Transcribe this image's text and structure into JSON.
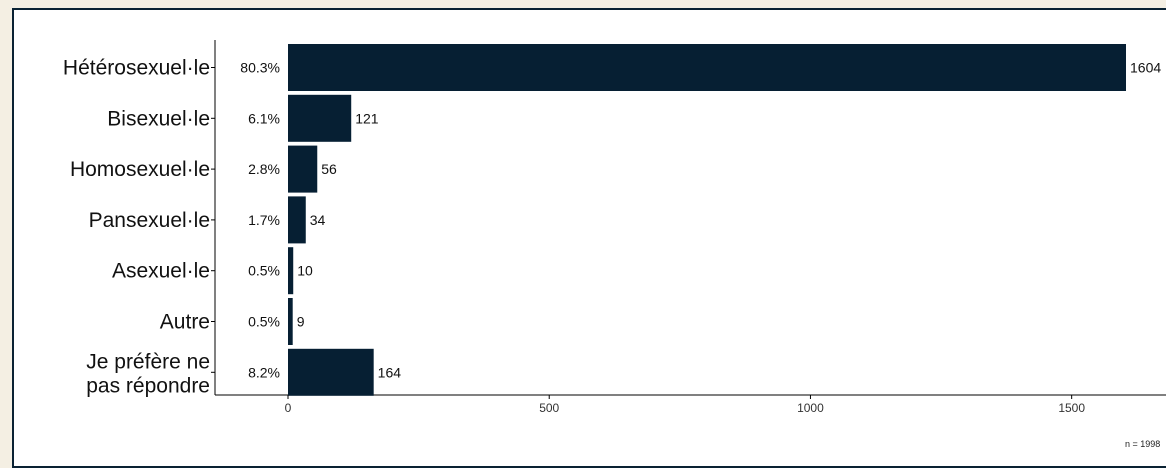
{
  "chart_data": {
    "type": "bar",
    "orientation": "horizontal",
    "categories": [
      "Hétérosexuel·le",
      "Bisexuel·le",
      "Homosexuel·le",
      "Pansexuel·le",
      "Asexuel·le",
      "Autre",
      "Je préfère ne pas répondre"
    ],
    "values": [
      1604,
      121,
      56,
      34,
      10,
      9,
      164
    ],
    "percent_labels": [
      "80.3%",
      "6.1%",
      "2.8%",
      "1.7%",
      "0.5%",
      "0.5%",
      "8.2%"
    ],
    "xlim": [
      0,
      1650
    ],
    "x_ticks": [
      0,
      500,
      1000,
      1500
    ],
    "caption": "n =  1998",
    "bar_color": "#061f33",
    "grid": false,
    "legend": "none"
  }
}
